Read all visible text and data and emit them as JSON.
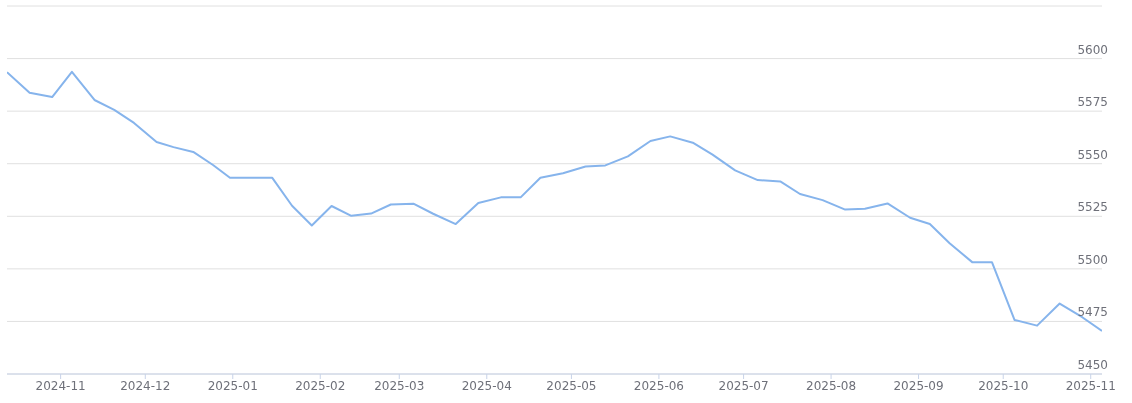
{
  "chart_data": {
    "type": "line",
    "x": [
      "2024-10-13",
      "2024-10-21",
      "2024-10-29",
      "2024-11-05",
      "2024-11-13",
      "2024-11-20",
      "2024-11-27",
      "2024-12-05",
      "2024-12-11",
      "2024-12-18",
      "2024-12-25",
      "2024-12-31",
      "2025-01-08",
      "2025-01-15",
      "2025-01-22",
      "2025-01-29",
      "2025-02-05",
      "2025-02-12",
      "2025-02-19",
      "2025-02-26",
      "2025-03-06",
      "2025-03-13",
      "2025-03-21",
      "2025-03-29",
      "2025-04-06",
      "2025-04-13",
      "2025-04-20",
      "2025-04-28",
      "2025-05-06",
      "2025-05-13",
      "2025-05-21",
      "2025-05-29",
      "2025-06-05",
      "2025-06-13",
      "2025-06-20",
      "2025-06-28",
      "2025-07-06",
      "2025-07-14",
      "2025-07-21",
      "2025-07-29",
      "2025-08-06",
      "2025-08-13",
      "2025-08-21",
      "2025-08-29",
      "2025-09-05",
      "2025-09-12",
      "2025-09-20",
      "2025-09-27",
      "2025-10-05",
      "2025-10-13",
      "2025-10-21",
      "2025-10-29",
      "2025-11-05"
    ],
    "series": [
      {
        "color": "#86b4ec",
        "values": [
          5593.5,
          5583.7,
          5581.7,
          5593.7,
          5580.3,
          5575.6,
          5569.4,
          5560.3,
          5557.9,
          5555.6,
          5549.4,
          5543.3,
          5543.3,
          5543.3,
          5530,
          5520.6,
          5529.9,
          5525.2,
          5526.3,
          5530.6,
          5531,
          5526.2,
          5521.3,
          5531.3,
          5534,
          5534,
          5543.3,
          5545.5,
          5548.7,
          5549.2,
          5553.5,
          5560.8,
          5563,
          5560,
          5554.3,
          5546.8,
          5542.2,
          5541.6,
          5535.6,
          5532.7,
          5528.2,
          5528.6,
          5531.1,
          5524.3,
          5521.3,
          5512.2,
          5503.2,
          5503.2,
          5475.7,
          5473,
          5483.5,
          5477,
          5470.5
        ]
      }
    ],
    "xlim": [
      "2024-10-13",
      "2025-11-05"
    ],
    "xticks": [
      {
        "value": "2024-11-01",
        "label": "2024-11"
      },
      {
        "value": "2024-12-01",
        "label": "2024-12"
      },
      {
        "value": "2025-01-01",
        "label": "2025-01"
      },
      {
        "value": "2025-02-01",
        "label": "2025-02"
      },
      {
        "value": "2025-03-01",
        "label": "2025-03"
      },
      {
        "value": "2025-04-01",
        "label": "2025-04"
      },
      {
        "value": "2025-05-01",
        "label": "2025-05"
      },
      {
        "value": "2025-06-01",
        "label": "2025-06"
      },
      {
        "value": "2025-07-01",
        "label": "2025-07"
      },
      {
        "value": "2025-08-01",
        "label": "2025-08"
      },
      {
        "value": "2025-09-01",
        "label": "2025-09"
      },
      {
        "value": "2025-10-01",
        "label": "2025-10"
      },
      {
        "value": "2025-11-01",
        "label": "2025-11"
      }
    ],
    "ylim": [
      5450,
      5625
    ],
    "yticks": [
      5450,
      5475,
      5500,
      5525,
      5550,
      5575,
      5600,
      {
        "value": 5625,
        "label": null
      }
    ],
    "grid": "y",
    "marker": "none",
    "line_style": "solid"
  }
}
